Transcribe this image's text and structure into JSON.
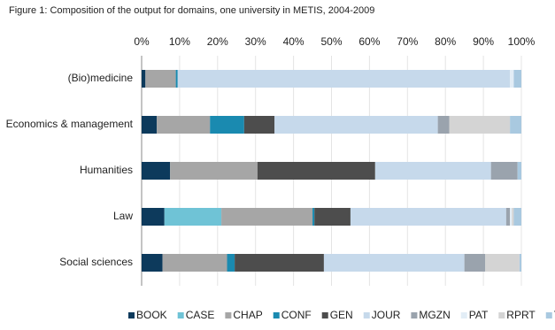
{
  "chart_data": {
    "type": "stacked-bar-horizontal",
    "title": "Figure 1: Composition of the output for domains, one university in METIS, 2004-2009",
    "categories": [
      "(Bio)medicine",
      "Economics & management",
      "Humanities",
      "Law",
      "Social sciences"
    ],
    "xlim": [
      0,
      100
    ],
    "xticks": [
      {
        "value": 0,
        "label": "0%"
      },
      {
        "value": 10,
        "label": "10%"
      },
      {
        "value": 20,
        "label": "20%"
      },
      {
        "value": 30,
        "label": "30%"
      },
      {
        "value": 40,
        "label": "40%"
      },
      {
        "value": 50,
        "label": "50%"
      },
      {
        "value": 60,
        "label": "60%"
      },
      {
        "value": 70,
        "label": "70%"
      },
      {
        "value": 80,
        "label": "80%"
      },
      {
        "value": 90,
        "label": "90%"
      },
      {
        "value": 100,
        "label": "100%"
      }
    ],
    "grid": true,
    "legend": "bottom",
    "series": [
      {
        "name": "BOOK",
        "color": "#0d3a5c",
        "values": [
          1,
          4,
          7.5,
          6,
          5.5
        ]
      },
      {
        "name": "CASE",
        "color": "#6fc3d6",
        "values": [
          0,
          0,
          0,
          15,
          0
        ]
      },
      {
        "name": "CHAP",
        "color": "#a6a6a6",
        "values": [
          8,
          14,
          23,
          24,
          17
        ]
      },
      {
        "name": "CONF",
        "color": "#1a8ab0",
        "values": [
          0.5,
          9,
          0,
          0.5,
          2
        ]
      },
      {
        "name": "GEN",
        "color": "#4d4d4d",
        "values": [
          0,
          8,
          31,
          9.5,
          23.5
        ]
      },
      {
        "name": "JOUR",
        "color": "#c6d9eb",
        "values": [
          87.5,
          43,
          30.5,
          41,
          37
        ]
      },
      {
        "name": "MGZN",
        "color": "#9aa3ad",
        "values": [
          0,
          3,
          7,
          1,
          5.5
        ]
      },
      {
        "name": "PAT",
        "color": "#e2edf6",
        "values": [
          1,
          0,
          0,
          0.5,
          0
        ]
      },
      {
        "name": "RPRT",
        "color": "#d4d4d4",
        "values": [
          0,
          16,
          0,
          0.5,
          9
        ]
      },
      {
        "name": "THES",
        "color": "#a9c9e0",
        "values": [
          2,
          3,
          1,
          2,
          0.5
        ]
      }
    ]
  }
}
